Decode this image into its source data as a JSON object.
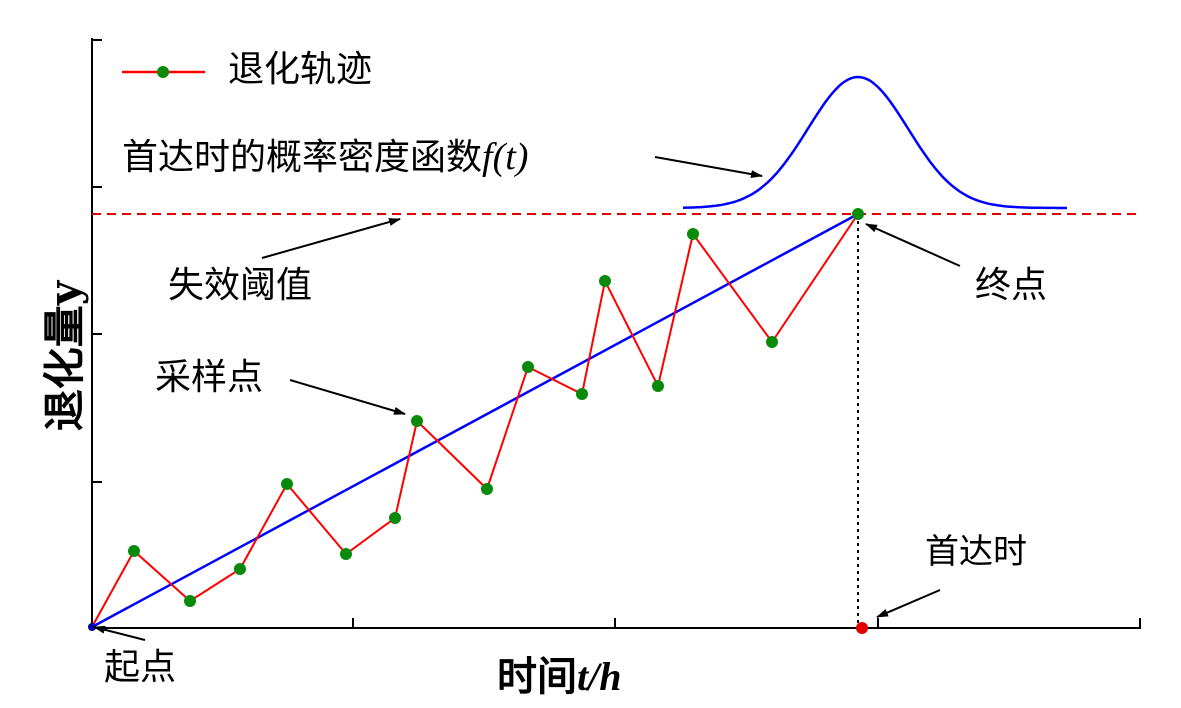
{
  "legend": {
    "label": "退化轨迹"
  },
  "annotations": {
    "pdf_label": "首达时的概率密度函数",
    "pdf_symbol": "f(t)",
    "threshold": "失效阈值",
    "end_point": "终点",
    "sample_points": "采样点",
    "first_passage_time": "首达时",
    "start_point": "起点"
  },
  "axes": {
    "y_label": "退化量y",
    "x_label_prefix": "时间",
    "x_label_var": "t/h"
  },
  "colors": {
    "trajectory": "#ff0000",
    "sample_point": "#0a8a0a",
    "trend_line": "#0000ff",
    "pdf_curve": "#0000ff",
    "threshold": "#e00000",
    "axes": "#000000"
  }
}
